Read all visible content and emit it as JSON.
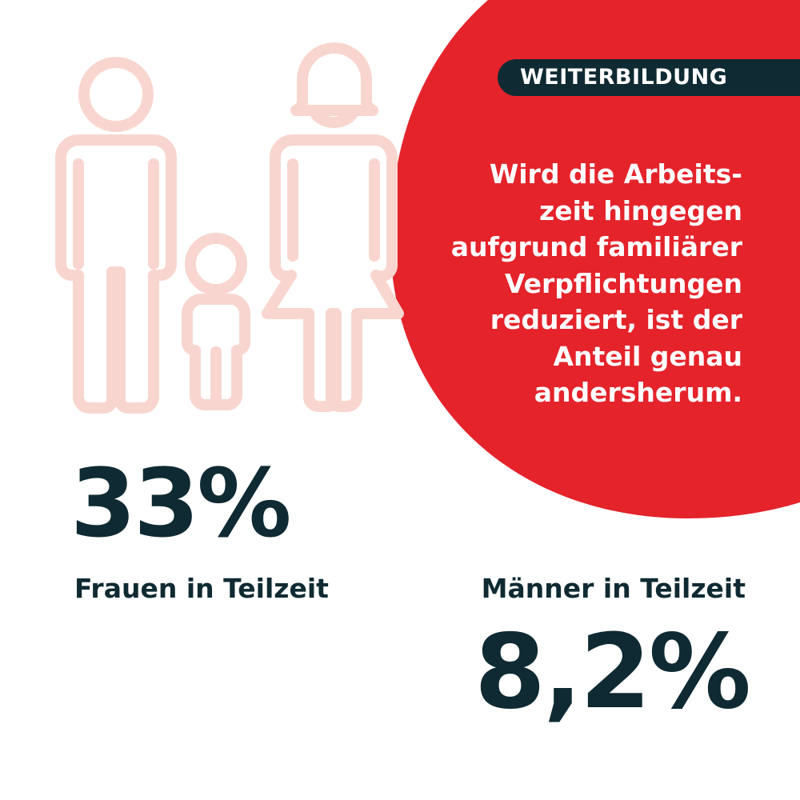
{
  "tag": {
    "label": "WEITERBILDUNG"
  },
  "quote": {
    "lines": [
      "Wird die Arbeits-",
      "zeit hingegen",
      "aufgrund familiärer",
      "Verpflichtungen",
      "reduziert, ist der",
      "Anteil genau",
      "andersherum."
    ]
  },
  "stats": {
    "women": {
      "value": "33%",
      "label": "Frauen in Teilzeit"
    },
    "men": {
      "value": "8,2%",
      "label": "Männer in Teilzeit"
    }
  },
  "colors": {
    "accent_red": "#e4232b",
    "dark": "#0f2a32",
    "icon_outline": "#f8d6cf",
    "background": "#ffffff"
  },
  "icons": [
    "family-icon"
  ]
}
